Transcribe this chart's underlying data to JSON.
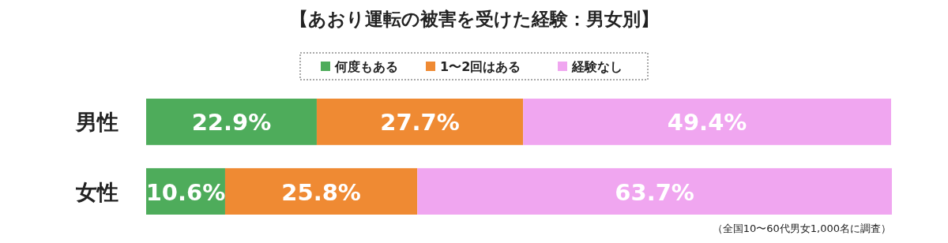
{
  "chart_data": {
    "type": "bar",
    "orientation": "horizontal",
    "stacked": true,
    "legend": "top",
    "title": "【あおり運転の被害を受けた経験：男女別】",
    "categories": [
      "男性",
      "女性"
    ],
    "xlim": [
      0,
      100
    ],
    "series": [
      {
        "name": "何度もある",
        "color": "#4eac5b",
        "values": [
          22.9,
          10.6
        ],
        "value_labels": [
          "22.9%",
          "10.6%"
        ]
      },
      {
        "name": "1〜2回はある",
        "color": "#ef8a33",
        "values": [
          27.7,
          25.8
        ],
        "value_labels": [
          "27.7%",
          "25.8%"
        ]
      },
      {
        "name": "経験なし",
        "color": "#f0a6f0",
        "values": [
          49.4,
          63.7
        ],
        "value_labels": [
          "49.4%",
          "63.7%"
        ]
      }
    ],
    "annotations": [
      "（全国10〜60代男女1,000名に調査）"
    ]
  }
}
